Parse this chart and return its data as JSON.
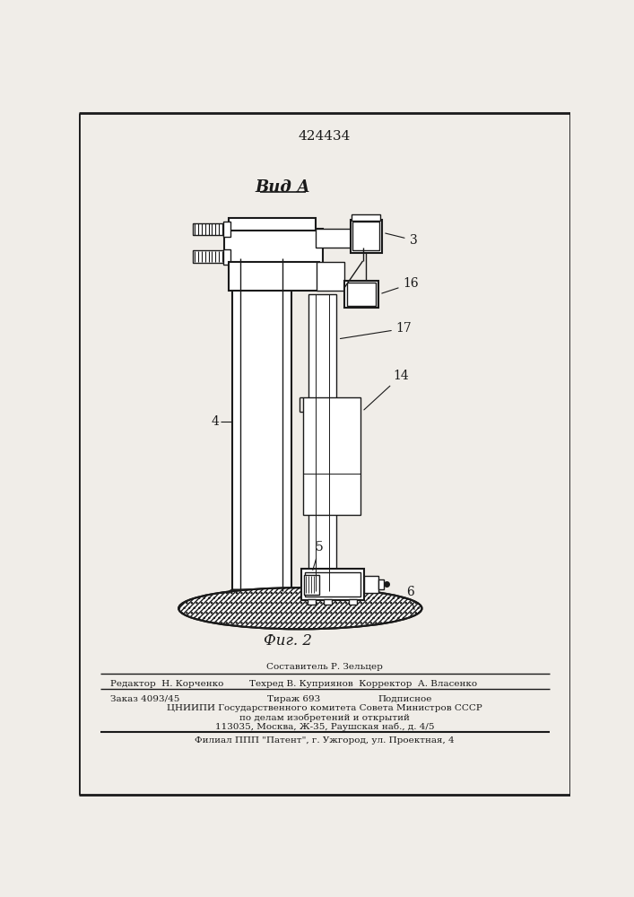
{
  "patent_number": "424434",
  "title_label": "Вид А",
  "fig_label": "Фиг. 2",
  "bg_color": "#f0ede8",
  "line_color": "#1a1a1a",
  "footer": {
    "sestavitel": "Составитель Р. Зельцер",
    "line1_left": "Редактор  Н. Корченко",
    "line1_center": "Техред В. Куприянов  Корректор  А. Власенко",
    "line2_left": "Заказ 4093/45",
    "line2_center": "Тираж 693",
    "line2_right": "Подписное",
    "line3": "ЦНИИПИ Государственного комитета Совета Министров СССР",
    "line4": "по делам изобретений и открытий",
    "line5": "113035, Москва, Ж-35, Раушская наб., д. 4/5",
    "line6": "Филиал ППП \"Патент\", г. Ужгород, ул. Проектная, 4"
  }
}
